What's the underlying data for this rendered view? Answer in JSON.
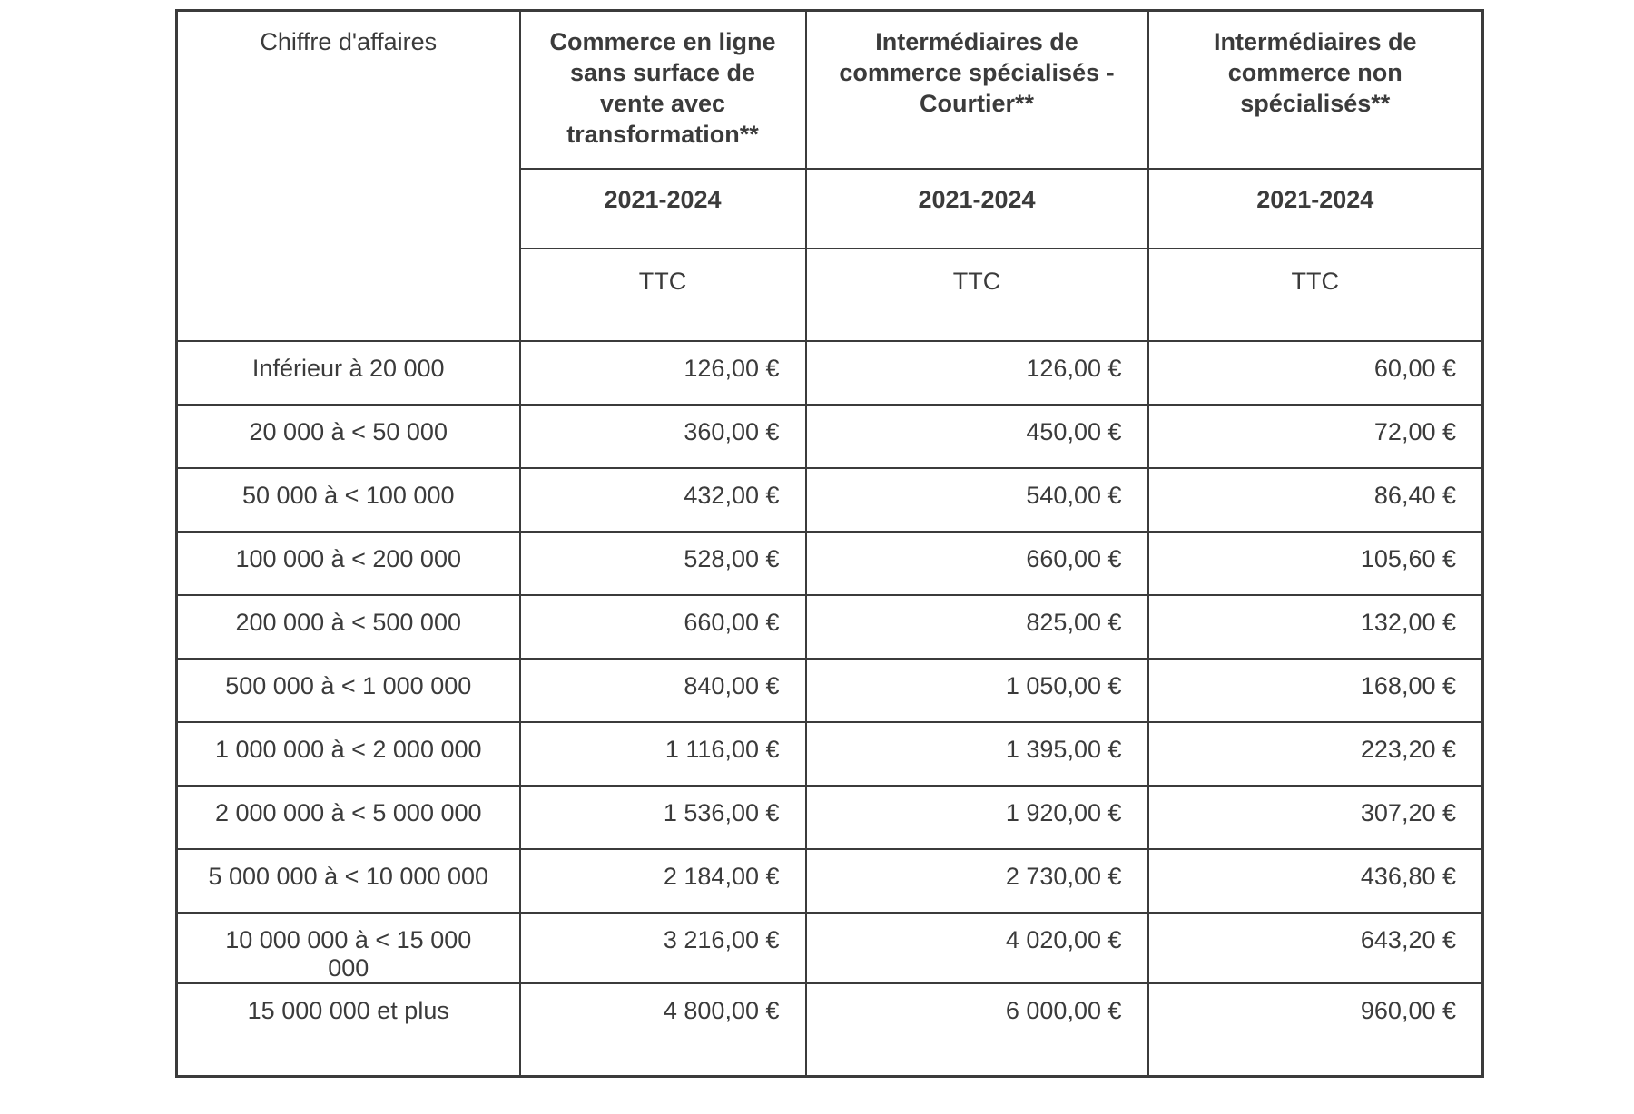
{
  "table": {
    "corner_label": "Chiffre d'affaires",
    "columns": [
      {
        "title": "Commerce en ligne sans surface de vente avec transformation**",
        "period": "2021-2024",
        "tax_label": "TTC"
      },
      {
        "title": "Intermédiaires de commerce spécialisés - Courtier**",
        "period": "2021-2024",
        "tax_label": "TTC"
      },
      {
        "title": "Intermédiaires de commerce non spécialisés**",
        "period": "2021-2024",
        "tax_label": "TTC"
      }
    ],
    "rows": [
      {
        "label": "Inférieur à 20 000",
        "values": [
          "126,00 €",
          "126,00 €",
          "60,00 €"
        ]
      },
      {
        "label": "20 000 à < 50 000",
        "values": [
          "360,00 €",
          "450,00 €",
          "72,00 €"
        ]
      },
      {
        "label": "50 000  à < 100 000",
        "values": [
          "432,00 €",
          "540,00 €",
          "86,40 €"
        ]
      },
      {
        "label": "100 000  à < 200 000",
        "values": [
          "528,00 €",
          "660,00 €",
          "105,60 €"
        ]
      },
      {
        "label": "200 000 à < 500 000",
        "values": [
          "660,00 €",
          "825,00 €",
          "132,00 €"
        ]
      },
      {
        "label": "500 000 à < 1 000 000",
        "values": [
          "840,00 €",
          "1 050,00 €",
          "168,00 €"
        ]
      },
      {
        "label": "1 000 000 à < 2 000 000",
        "values": [
          "1 116,00 €",
          "1 395,00 €",
          "223,20 €"
        ]
      },
      {
        "label": "2 000 000 à <  5 000 000",
        "values": [
          "1 536,00 €",
          "1 920,00 €",
          "307,20 €"
        ]
      },
      {
        "label": "5 000 000 à < 10 000 000",
        "values": [
          "2 184,00 €",
          "2 730,00 €",
          "436,80 €"
        ]
      },
      {
        "label": "10 000 000 à < 15 000 000",
        "values": [
          "3 216,00 €",
          "4 020,00 €",
          "643,20 €"
        ]
      },
      {
        "label": "15 000 000  et plus",
        "values": [
          "4 800,00 €",
          "6 000,00 €",
          "960,00 €"
        ]
      }
    ]
  },
  "colors": {
    "text": "#3b3b3b",
    "border": "#3b3b3b",
    "background": "#ffffff"
  }
}
